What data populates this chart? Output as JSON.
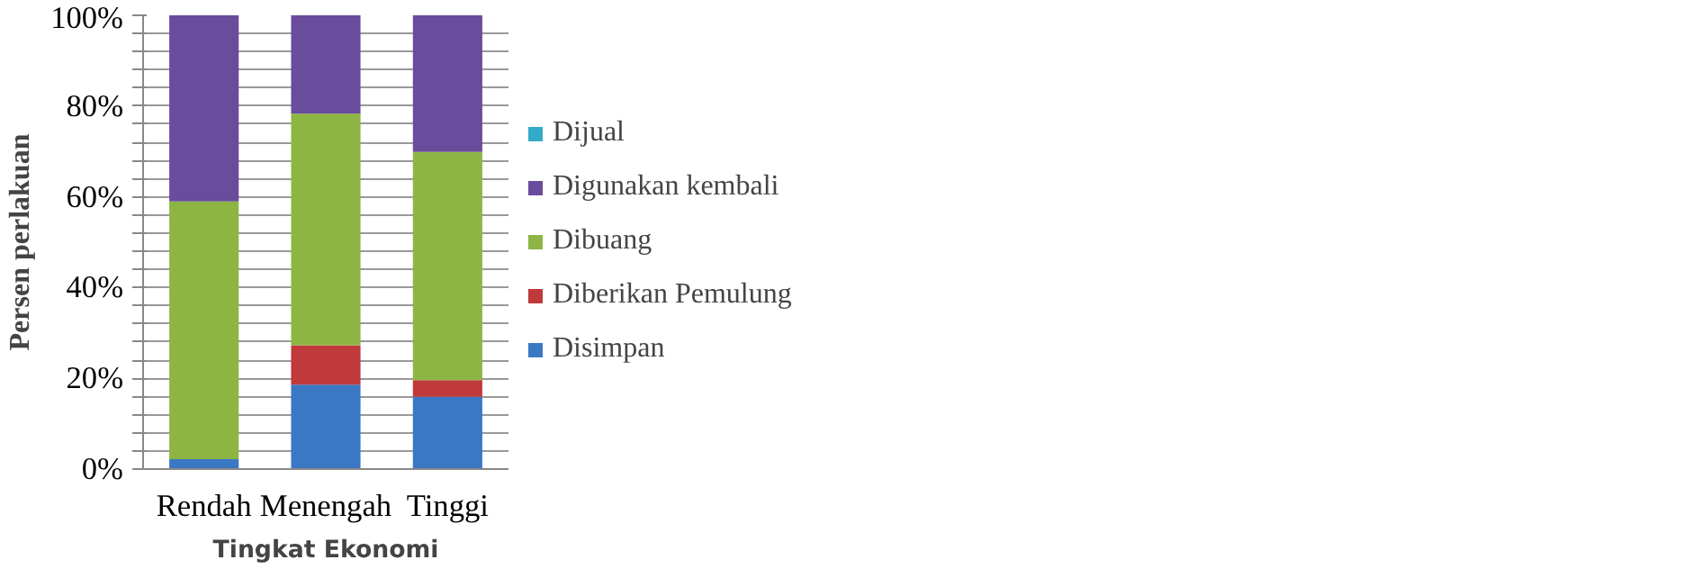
{
  "chart_data": {
    "type": "bar",
    "stacked": true,
    "xlabel": "Tingkat Ekonomi",
    "ylabel": "Persen perlakuan",
    "categories": [
      "Rendah",
      "Menengah",
      "Tinggi"
    ],
    "series": [
      {
        "name": "Disimpan",
        "color": "#3a78c4",
        "values": [
          2.2,
          18.6,
          15.9
        ]
      },
      {
        "name": "Diberikan Pemulung",
        "color": "#c0393b",
        "values": [
          0,
          8.7,
          3.7
        ]
      },
      {
        "name": "Dibuang",
        "color": "#8db543",
        "values": [
          56.8,
          51.0,
          50.3
        ]
      },
      {
        "name": "Digunakan kembali",
        "color": "#6a4c9c",
        "values": [
          41.0,
          21.7,
          30.1
        ]
      },
      {
        "name": "Dijual",
        "color": "#35aac8",
        "values": [
          0,
          0,
          0
        ]
      }
    ],
    "ylim": [
      0,
      100
    ],
    "yticks": [
      {
        "value": 0,
        "label": "0%"
      },
      {
        "value": 4,
        "label": null
      },
      {
        "value": 8,
        "label": null
      },
      {
        "value": 12,
        "label": null
      },
      {
        "value": 16,
        "label": null
      },
      {
        "value": 20,
        "label": "20%"
      },
      {
        "value": 24,
        "label": null
      },
      {
        "value": 28,
        "label": null
      },
      {
        "value": 32,
        "label": null
      },
      {
        "value": 36,
        "label": null
      },
      {
        "value": 40,
        "label": "40%"
      },
      {
        "value": 44,
        "label": null
      },
      {
        "value": 48,
        "label": null
      },
      {
        "value": 52,
        "label": null
      },
      {
        "value": 56,
        "label": null
      },
      {
        "value": 60,
        "label": "60%"
      },
      {
        "value": 64,
        "label": null
      },
      {
        "value": 68,
        "label": null
      },
      {
        "value": 72,
        "label": null
      },
      {
        "value": 76,
        "label": null
      },
      {
        "value": 80,
        "label": "80%"
      },
      {
        "value": 84,
        "label": null
      },
      {
        "value": 88,
        "label": null
      },
      {
        "value": 92,
        "label": null
      },
      {
        "value": 96,
        "label": null
      },
      {
        "value": 100,
        "label": "100%"
      }
    ],
    "grid": "y",
    "legend": "right"
  }
}
